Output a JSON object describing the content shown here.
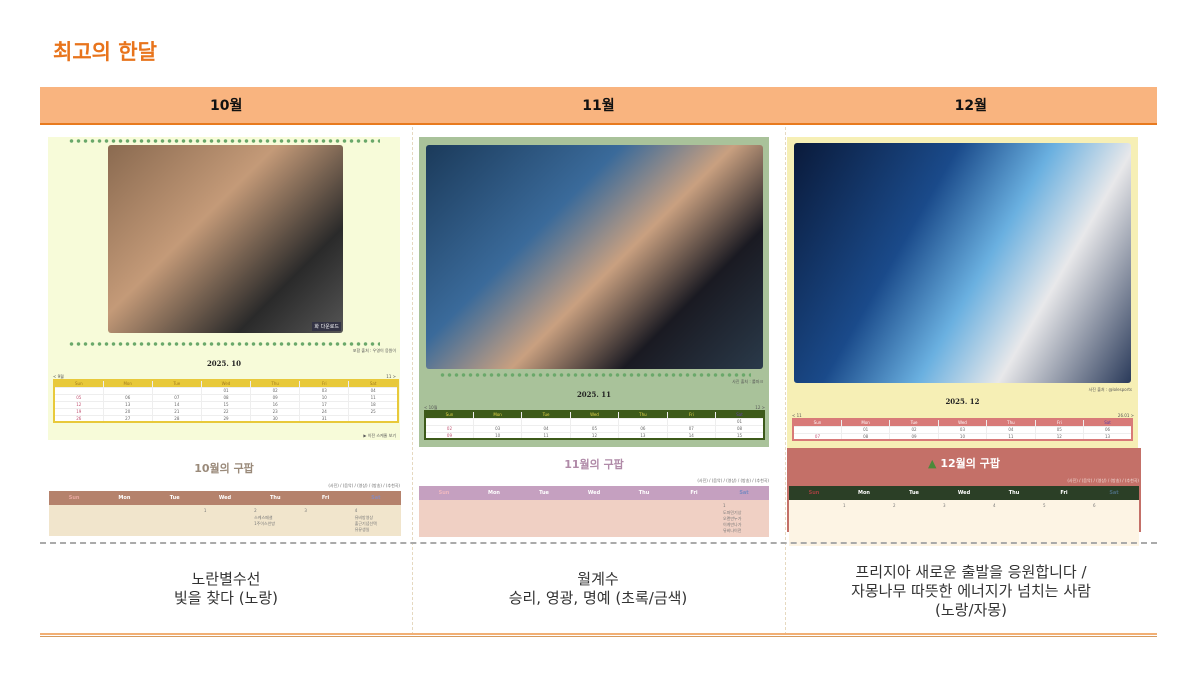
{
  "title": "최고의 한달",
  "months": [
    {
      "header": "10월",
      "year_month": "2025. 10",
      "photo_caption": "화 다운로드",
      "credit": "포함 출처 : 우영이 응원이",
      "nav_prev": "< 9월",
      "nav_next": "11 >",
      "more_link": "▶ 이전 스케줄 보기",
      "weekdays": [
        "Sun",
        "Mon",
        "Tue",
        "Wed",
        "Thu",
        "Fri",
        "Sat"
      ],
      "weeks": [
        [
          "",
          "",
          "",
          "01",
          "02",
          "03",
          "04"
        ],
        [
          "05",
          "06",
          "07",
          "08",
          "09",
          "10",
          "11"
        ],
        [
          "12",
          "13",
          "14",
          "15",
          "16",
          "17",
          "18"
        ],
        [
          "19",
          "20",
          "21",
          "22",
          "23",
          "24",
          "25"
        ],
        [
          "26",
          "27",
          "28",
          "29",
          "30",
          "31",
          ""
        ]
      ],
      "schedule_title": "10월의 구팝",
      "legend": "(사진) / (음악) / (영상) / (방송) / (추천곡)",
      "schedule_days": [
        "",
        "",
        "",
        "1",
        "2",
        "3",
        "4"
      ],
      "schedule_notes": [
        "",
        "",
        "",
        "",
        "스케스페셜\n1주이스안방",
        "",
        "뮤비방영상\n출근기념선택\n뮤뮤생일"
      ],
      "description": "노란별수선\n빛을 찾다 (노랑)"
    },
    {
      "header": "11월",
      "year_month": "2025. 11",
      "credit": "사진 출처 : 롤파크",
      "nav_prev": "< 10월",
      "nav_next": "12 >",
      "weekdays": [
        "Sun",
        "Mon",
        "Tue",
        "Wed",
        "Thu",
        "Fri",
        "Sat"
      ],
      "weeks": [
        [
          "",
          "",
          "",
          "",
          "",
          "",
          "01"
        ],
        [
          "02",
          "03",
          "04",
          "05",
          "06",
          "07",
          "08"
        ],
        [
          "09",
          "10",
          "11",
          "12",
          "13",
          "14",
          "15"
        ]
      ],
      "schedule_title": "11월의 구팝",
      "legend": "(사진) / (음악) / (영상) / (방송) / (추천곡)",
      "schedule_days": [
        "",
        "",
        "",
        "",
        "",
        "",
        "1"
      ],
      "schedule_notes": [
        "",
        "",
        "",
        "",
        "",
        "",
        "도파민기상\n오랜만누가\n이게만나가\n뮤비나이전"
      ],
      "description": "월계수\n승리, 영광, 명예 (초록/금색)"
    },
    {
      "header": "12월",
      "year_month": "2025. 12",
      "credit": "사진 출처 : @lolesports",
      "nav_prev": "< 11",
      "nav_next": "26.01 >",
      "weekdays": [
        "Sun",
        "Mon",
        "Tue",
        "Wed",
        "Thu",
        "Fri",
        "Sat"
      ],
      "weeks": [
        [
          "",
          "01",
          "02",
          "03",
          "04",
          "05",
          "06"
        ],
        [
          "07",
          "08",
          "09",
          "10",
          "11",
          "12",
          "13"
        ]
      ],
      "schedule_title": "12월의 구팝",
      "schedule_icon": "christmas-tree-icon",
      "legend": "(사진) / (음악) / (영상) / (방송) / (추천곡)",
      "schedule_days": [
        "",
        "1",
        "2",
        "3",
        "4",
        "5",
        "6"
      ],
      "schedule_notes": [
        "",
        "",
        "",
        "",
        "",
        "",
        ""
      ],
      "description": "프리지아 새로운 출발을 응원합니다 /\n자몽나무 따뜻한 에너지가 넘치는 사람\n(노랑/자몽)"
    }
  ],
  "colors": {
    "accent": "#e8741c",
    "header_bar": "#f9b47f"
  }
}
